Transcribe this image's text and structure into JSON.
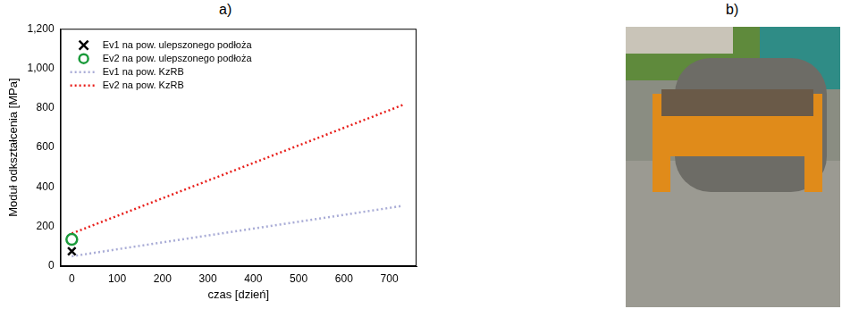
{
  "panel_labels": [
    "a)",
    "b)"
  ],
  "chart_data": {
    "type": "scatter",
    "x_label": "czas [dzień]",
    "y_label": "Moduł odkształcenia [MPa]",
    "xlim": [
      -25,
      760
    ],
    "xticks": [
      0,
      100,
      200,
      300,
      400,
      500,
      600,
      700
    ],
    "ylim": [
      0,
      1200
    ],
    "yticks": [
      0,
      200,
      400,
      600,
      800,
      1000,
      1200
    ],
    "grid": false,
    "legend": "upper left",
    "series": [
      {
        "name": "Ev1 na pow. ulepszonego podłoża",
        "type": "scatter",
        "marker": "cross",
        "color": "#000000",
        "x": [
          0
        ],
        "values": [
          75
        ]
      },
      {
        "name": "Ev2 na pow. ulepszonego podłoża",
        "type": "scatter",
        "marker": "circle",
        "color": "#1a9a3a",
        "x": [
          0
        ],
        "values": [
          135
        ]
      },
      {
        "name": "Ev1 na pow. KzRB",
        "type": "line",
        "line_style": "dotted",
        "color": "#a9acd6",
        "x": [
          0,
          730
        ],
        "values": [
          50,
          305
        ]
      },
      {
        "name": "Ev2 na pow. KzRB",
        "type": "line",
        "line_style": "dotted",
        "color": "#e8201c",
        "x": [
          0,
          730
        ],
        "values": [
          165,
          815
        ]
      }
    ]
  }
}
